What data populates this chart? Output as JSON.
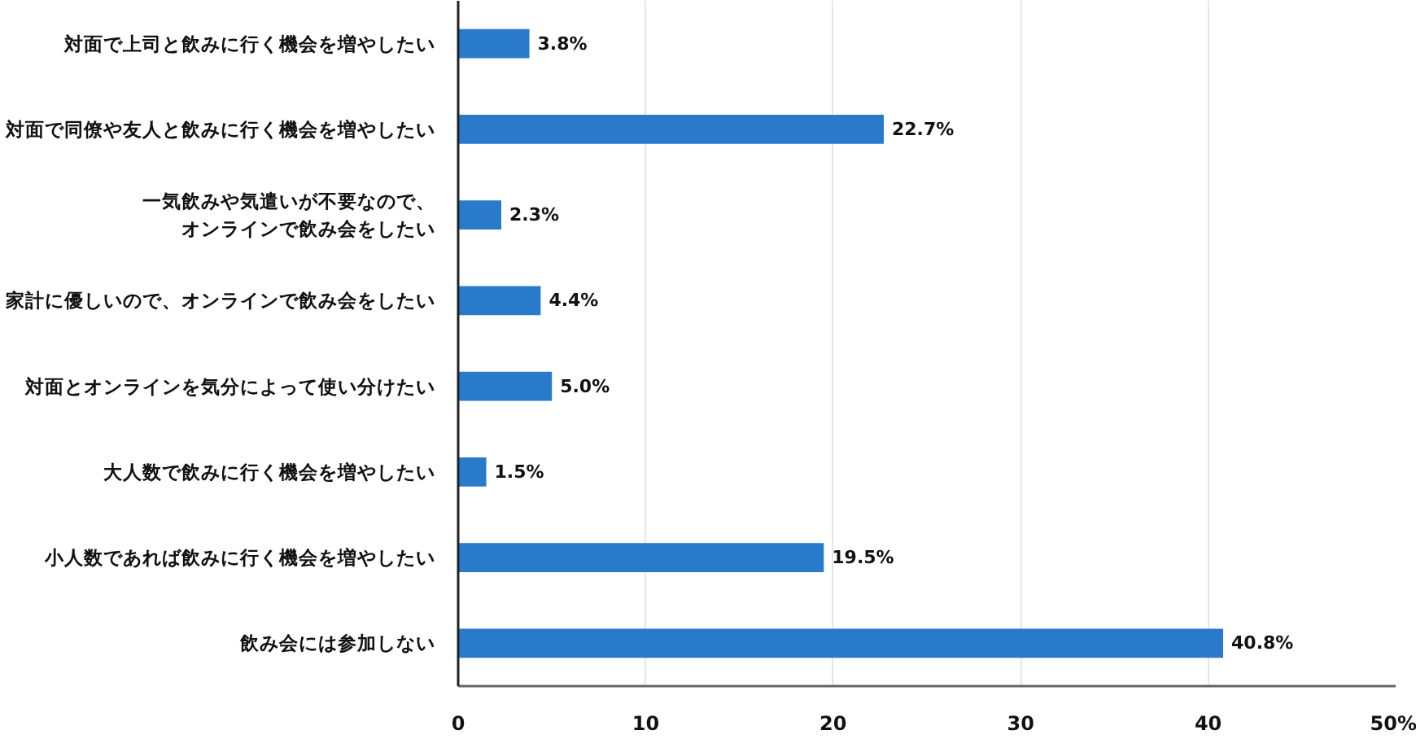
{
  "chart_data": {
    "type": "bar",
    "orientation": "horizontal",
    "categories": [
      "対面で上司と飲みに行く機会を増やしたい",
      "対面で同僚や友人と飲みに行く機会を増やしたい",
      "一気飲みや気遣いが不要なので、オンラインで飲み会をしたい",
      "家計に優しいので、オンラインで飲み会をしたい",
      "対面とオンラインを気分によって使い分けたい",
      "大人数で飲みに行く機会を増やしたい",
      "小人数であれば飲みに行く機会を増やしたい",
      "飲み会には参加しない"
    ],
    "values": [
      3.8,
      22.7,
      2.3,
      4.4,
      5.0,
      1.5,
      19.5,
      40.8
    ],
    "value_labels": [
      "3.8%",
      "22.7%",
      "2.3%",
      "4.4%",
      "5.0%",
      "1.5%",
      "19.5%",
      "40.8%"
    ],
    "color": "#2a7acb",
    "xlim": [
      0,
      50
    ],
    "xticks": [
      0,
      10,
      20,
      30,
      40,
      {
        "value": 50,
        "label": "50%"
      }
    ],
    "grid": "x"
  }
}
